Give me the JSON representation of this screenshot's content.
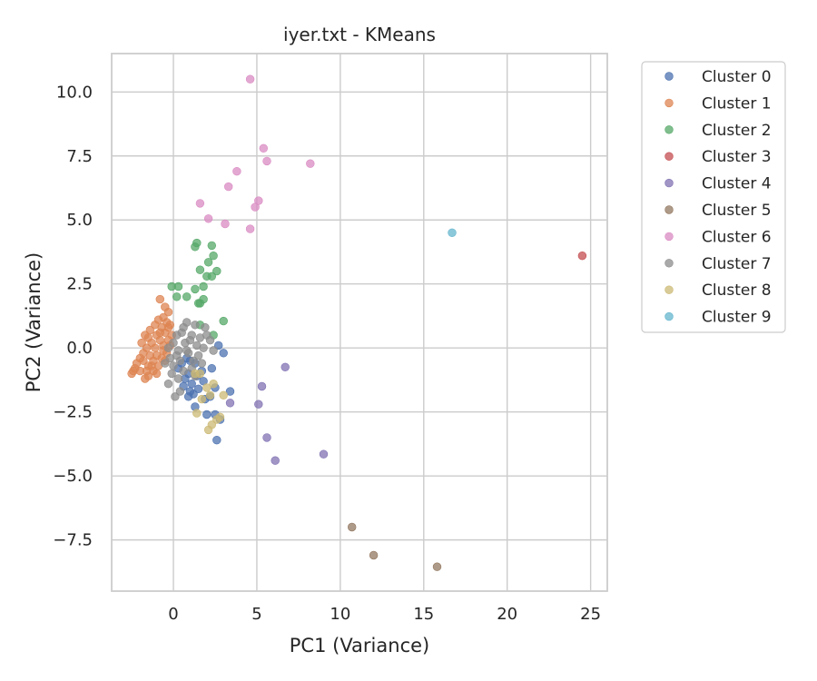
{
  "chart_data": {
    "type": "scatter",
    "title": "iyer.txt - KMeans",
    "xlabel": "PC1 (Variance)",
    "ylabel": "PC2 (Variance)",
    "xlim": [
      -3.7,
      26
    ],
    "ylim": [
      -9.5,
      11.5
    ],
    "xticks": [
      {
        "value": 0,
        "label": "0"
      },
      {
        "value": 5,
        "label": "5"
      },
      {
        "value": 10,
        "label": "10"
      },
      {
        "value": 15,
        "label": "15"
      },
      {
        "value": 20,
        "label": "20"
      },
      {
        "value": 25,
        "label": "25"
      }
    ],
    "yticks": [
      {
        "value": -7.5,
        "label": "−7.5"
      },
      {
        "value": -5.0,
        "label": "−5.0"
      },
      {
        "value": -2.5,
        "label": "−2.5"
      },
      {
        "value": 0.0,
        "label": "0.0"
      },
      {
        "value": 2.5,
        "label": "2.5"
      },
      {
        "value": 5.0,
        "label": "5.0"
      },
      {
        "value": 7.5,
        "label": "7.5"
      },
      {
        "value": 10.0,
        "label": "10.0"
      }
    ],
    "grid": true,
    "legend_position": "outside-right-top",
    "series": [
      {
        "name": "Cluster 0",
        "color": "#4c72b0",
        "points": [
          [
            2.6,
            -3.6
          ],
          [
            2.8,
            -2.8
          ],
          [
            2.0,
            -2.6
          ],
          [
            2.5,
            -2.6
          ],
          [
            1.3,
            -2.3
          ],
          [
            1.9,
            -2.0
          ],
          [
            1.2,
            -1.8
          ],
          [
            1.0,
            -1.7
          ],
          [
            1.5,
            -1.6
          ],
          [
            2.5,
            -1.55
          ],
          [
            3.4,
            -1.7
          ],
          [
            0.6,
            -1.5
          ],
          [
            1.1,
            -1.4
          ],
          [
            0.7,
            -1.2
          ],
          [
            1.8,
            -1.3
          ],
          [
            1.4,
            -1.1
          ],
          [
            0.9,
            -1.0
          ],
          [
            0.3,
            -0.8
          ],
          [
            2.3,
            -0.8
          ],
          [
            1.3,
            -0.6
          ],
          [
            0.8,
            -0.4
          ],
          [
            3.0,
            -0.2
          ],
          [
            2.7,
            0.1
          ],
          [
            1.7,
            -0.9
          ],
          [
            1.0,
            -0.5
          ],
          [
            0.5,
            -0.6
          ],
          [
            2.2,
            -1.9
          ],
          [
            0.9,
            -1.9
          ]
        ]
      },
      {
        "name": "Cluster 1",
        "color": "#dd8452",
        "points": [
          [
            -2.5,
            -1.0
          ],
          [
            -2.3,
            -0.8
          ],
          [
            -2.0,
            -0.9
          ],
          [
            -1.7,
            -1.2
          ],
          [
            -1.5,
            -1.1
          ],
          [
            -1.3,
            -0.7
          ],
          [
            -2.0,
            -0.4
          ],
          [
            -1.8,
            -0.2
          ],
          [
            -1.6,
            0.0
          ],
          [
            -1.9,
            0.2
          ],
          [
            -1.5,
            0.4
          ],
          [
            -1.3,
            0.2
          ],
          [
            -1.1,
            0.0
          ],
          [
            -1.0,
            -0.3
          ],
          [
            -1.2,
            -0.5
          ],
          [
            -0.9,
            -0.7
          ],
          [
            -0.7,
            -0.4
          ],
          [
            -0.6,
            0.1
          ],
          [
            -0.8,
            0.3
          ],
          [
            -1.0,
            0.5
          ],
          [
            -0.5,
            0.6
          ],
          [
            -0.7,
            0.8
          ],
          [
            -0.4,
            1.0
          ],
          [
            -0.6,
            1.2
          ],
          [
            -0.3,
            1.4
          ],
          [
            -0.8,
            1.9
          ],
          [
            -0.5,
            1.6
          ],
          [
            -0.2,
            0.9
          ],
          [
            -0.1,
            0.5
          ],
          [
            -1.4,
            0.7
          ],
          [
            -1.7,
            0.5
          ],
          [
            -2.2,
            -0.6
          ],
          [
            -1.2,
            -0.9
          ],
          [
            -0.4,
            -0.2
          ],
          [
            -0.3,
            0.3
          ],
          [
            -0.9,
            1.1
          ],
          [
            -1.1,
            0.9
          ],
          [
            -0.6,
            -0.1
          ],
          [
            -1.8,
            -0.5
          ],
          [
            -0.2,
            0.1
          ],
          [
            -2.4,
            -0.9
          ],
          [
            -1.4,
            -0.3
          ],
          [
            -0.8,
            0.6
          ],
          [
            -1.5,
            -0.7
          ],
          [
            -1.0,
            -1.0
          ],
          [
            -0.5,
            -0.5
          ],
          [
            -1.6,
            -0.9
          ],
          [
            -0.3,
            0.8
          ]
        ]
      },
      {
        "name": "Cluster 2",
        "color": "#55a868",
        "points": [
          [
            1.4,
            4.1
          ],
          [
            1.3,
            3.95
          ],
          [
            2.3,
            4.0
          ],
          [
            2.4,
            3.6
          ],
          [
            1.6,
            3.05
          ],
          [
            2.1,
            3.35
          ],
          [
            2.6,
            3.0
          ],
          [
            2.0,
            2.8
          ],
          [
            2.3,
            2.8
          ],
          [
            -0.1,
            2.4
          ],
          [
            0.3,
            2.4
          ],
          [
            1.3,
            2.3
          ],
          [
            1.8,
            2.4
          ],
          [
            0.2,
            2.0
          ],
          [
            0.8,
            2.0
          ],
          [
            1.8,
            1.9
          ],
          [
            1.6,
            1.75
          ],
          [
            1.5,
            1.75
          ],
          [
            3.0,
            1.05
          ],
          [
            1.6,
            0.9
          ],
          [
            2.4,
            0.5
          ]
        ]
      },
      {
        "name": "Cluster 3",
        "color": "#c44e52",
        "points": [
          [
            24.5,
            3.6
          ]
        ]
      },
      {
        "name": "Cluster 4",
        "color": "#8172b3",
        "points": [
          [
            6.7,
            -0.75
          ],
          [
            5.3,
            -1.5
          ],
          [
            3.4,
            -2.15
          ],
          [
            5.1,
            -2.2
          ],
          [
            5.6,
            -3.5
          ],
          [
            9.0,
            -4.15
          ],
          [
            6.1,
            -4.4
          ]
        ]
      },
      {
        "name": "Cluster 5",
        "color": "#937860",
        "points": [
          [
            10.7,
            -7.0
          ],
          [
            12.0,
            -8.1
          ],
          [
            15.8,
            -8.55
          ]
        ]
      },
      {
        "name": "Cluster 6",
        "color": "#da8bc3",
        "points": [
          [
            4.6,
            10.5
          ],
          [
            5.4,
            7.8
          ],
          [
            5.6,
            7.3
          ],
          [
            8.2,
            7.2
          ],
          [
            3.8,
            6.9
          ],
          [
            3.3,
            6.3
          ],
          [
            5.1,
            5.75
          ],
          [
            1.6,
            5.65
          ],
          [
            4.9,
            5.5
          ],
          [
            2.1,
            5.05
          ],
          [
            3.1,
            4.85
          ],
          [
            4.6,
            4.65
          ]
        ]
      },
      {
        "name": "Cluster 7",
        "color": "#8c8c8c",
        "points": [
          [
            0.8,
            1.0
          ],
          [
            1.3,
            0.9
          ],
          [
            1.9,
            0.8
          ],
          [
            0.5,
            0.6
          ],
          [
            0.2,
            0.5
          ],
          [
            1.1,
            0.5
          ],
          [
            1.6,
            0.4
          ],
          [
            2.2,
            0.3
          ],
          [
            0.0,
            0.2
          ],
          [
            0.7,
            0.2
          ],
          [
            1.4,
            0.1
          ],
          [
            1.8,
            0.0
          ],
          [
            2.4,
            -0.1
          ],
          [
            -0.3,
            0.0
          ],
          [
            0.3,
            -0.1
          ],
          [
            0.9,
            -0.2
          ],
          [
            1.5,
            -0.3
          ],
          [
            -0.2,
            -0.4
          ],
          [
            0.4,
            -0.5
          ],
          [
            1.2,
            -0.5
          ],
          [
            0.0,
            -0.7
          ],
          [
            0.6,
            -0.9
          ],
          [
            1.1,
            -0.8
          ],
          [
            -0.1,
            -1.0
          ],
          [
            0.3,
            -1.2
          ],
          [
            -0.3,
            -1.4
          ],
          [
            0.1,
            -1.9
          ],
          [
            0.4,
            -1.7
          ],
          [
            -0.5,
            -0.6
          ],
          [
            0.2,
            -0.3
          ],
          [
            1.7,
            -0.6
          ],
          [
            2.0,
            0.5
          ],
          [
            0.6,
            0.8
          ],
          [
            1.0,
            0.3
          ],
          [
            0.8,
            -0.1
          ],
          [
            1.3,
            -1.1
          ]
        ]
      },
      {
        "name": "Cluster 8",
        "color": "#ccb974",
        "points": [
          [
            1.3,
            -1.0
          ],
          [
            1.6,
            -1.0
          ],
          [
            3.0,
            -1.85
          ],
          [
            2.0,
            -1.55
          ],
          [
            2.2,
            -1.85
          ],
          [
            1.7,
            -2.0
          ],
          [
            2.6,
            -2.8
          ],
          [
            2.3,
            -3.0
          ],
          [
            2.1,
            -3.2
          ],
          [
            1.4,
            -2.55
          ],
          [
            2.8,
            -2.7
          ],
          [
            2.4,
            -1.4
          ]
        ]
      },
      {
        "name": "Cluster 9",
        "color": "#64b5cd",
        "points": [
          [
            16.7,
            4.5
          ]
        ]
      }
    ]
  }
}
